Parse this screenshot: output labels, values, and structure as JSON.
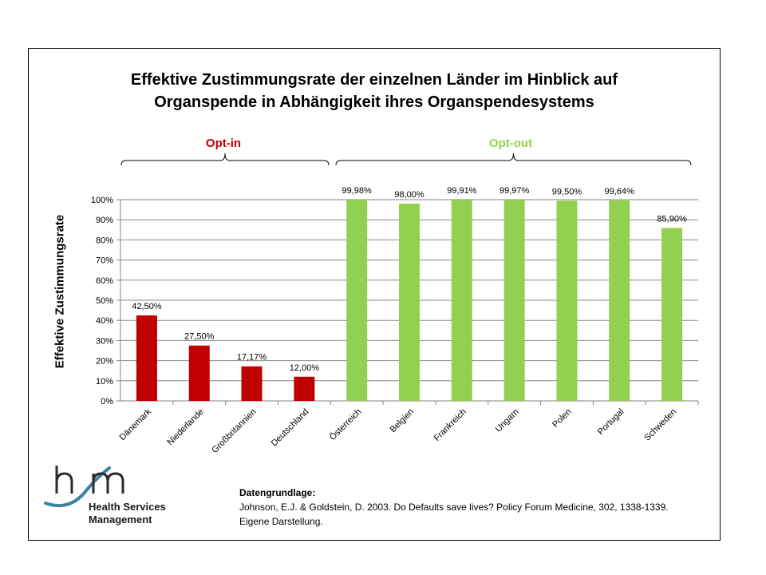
{
  "title": {
    "line1": "Effektive Zustimmungsrate der einzelnen Länder im Hinblick auf",
    "line2": "Organspende in Abhängigkeit ihres Organspendesystems"
  },
  "groups": {
    "optin": "Opt-in",
    "optout": "Opt-out"
  },
  "colors": {
    "optin": "#c00000",
    "optout": "#92d050",
    "grid": "#868686"
  },
  "source": {
    "heading": "Datengrundlage:",
    "line1": "Johnson, E.J. & Goldstein, D. 2003.  Do Defaults save lives? Policy Forum Medicine, 302, 1338-1339.",
    "line2": "Eigene Darstellung."
  },
  "logo": {
    "mark": "hsm",
    "line1": "Health Services",
    "line2": "Management"
  },
  "chart_data": {
    "type": "bar",
    "title": "Effektive Zustimmungsrate der einzelnen Länder im Hinblick auf Organspende in Abhängigkeit ihres Organspendesystems",
    "ylabel": "Effektive Zustimmungsrate",
    "xlabel": "",
    "ylim": [
      0,
      100
    ],
    "yticks": [
      "0%",
      "10%",
      "20%",
      "30%",
      "40%",
      "50%",
      "60%",
      "70%",
      "80%",
      "90%",
      "100%"
    ],
    "grid": true,
    "categories": [
      "Dänemark",
      "Niederlande",
      "Großbritannien",
      "Deutschland",
      "Österreich",
      "Belgien",
      "Frankreich",
      "Ungarn",
      "Polen",
      "Portugal",
      "Schweden"
    ],
    "values": [
      42.5,
      27.5,
      17.17,
      12.0,
      99.98,
      98.0,
      99.91,
      99.97,
      99.5,
      99.64,
      85.9
    ],
    "data_labels": [
      "42,50%",
      "27,50%",
      "17,17%",
      "12,00%",
      "99,98%",
      "98,00%",
      "99,91%",
      "99,97%",
      "99,50%",
      "99,64%",
      "85,90%"
    ],
    "group": [
      "optin",
      "optin",
      "optin",
      "optin",
      "optout",
      "optout",
      "optout",
      "optout",
      "optout",
      "optout",
      "optout"
    ]
  }
}
